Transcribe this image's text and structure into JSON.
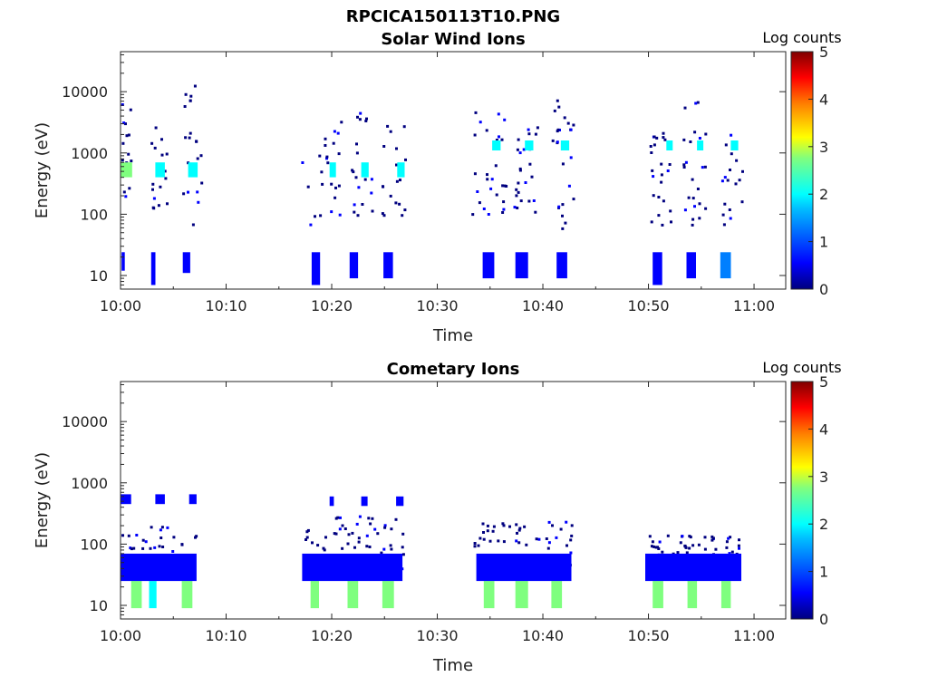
{
  "figure_title": "RPCICA150113T10.PNG",
  "colormap": [
    "#00007f",
    "#0000ff",
    "#007fff",
    "#00ffff",
    "#7fff7f",
    "#ffff00",
    "#ff7f00",
    "#ff0000",
    "#7f0000"
  ],
  "chart_data": [
    {
      "type": "heatmap",
      "title": "Solar Wind Ions",
      "xlabel": "Time",
      "ylabel": "Energy (eV)",
      "yscale": "log",
      "xlim": [
        "10:00",
        "11:03"
      ],
      "ylim": [
        6,
        45000
      ],
      "xticks": [
        "10:00",
        "10:10",
        "10:20",
        "10:30",
        "10:40",
        "10:50",
        "11:00"
      ],
      "yticks": [
        "10",
        "100",
        "1000",
        "10000"
      ],
      "colorbar": {
        "label": "Log counts",
        "range": [
          0,
          5
        ],
        "ticks": [
          "0",
          "1",
          "2",
          "3",
          "4",
          "5"
        ]
      },
      "grid": false,
      "blocks": [
        {
          "t": [
            0.0,
            1.1
          ],
          "e": [
            400,
            700
          ],
          "lc": 2.2
        },
        {
          "t": [
            3.3,
            4.2
          ],
          "e": [
            400,
            700
          ],
          "lc": 2.0
        },
        {
          "t": [
            6.4,
            7.3
          ],
          "e": [
            400,
            700
          ],
          "lc": 2.0
        },
        {
          "t": [
            19.8,
            20.4
          ],
          "e": [
            400,
            700
          ],
          "lc": 1.8
        },
        {
          "t": [
            22.8,
            23.5
          ],
          "e": [
            400,
            700
          ],
          "lc": 1.8
        },
        {
          "t": [
            26.2,
            26.9
          ],
          "e": [
            400,
            700
          ],
          "lc": 1.8
        },
        {
          "t": [
            35.2,
            36.0
          ],
          "e": [
            1100,
            1600
          ],
          "lc": 2.0
        },
        {
          "t": [
            38.3,
            39.1
          ],
          "e": [
            1100,
            1600
          ],
          "lc": 2.0
        },
        {
          "t": [
            41.7,
            42.5
          ],
          "e": [
            1100,
            1600
          ],
          "lc": 2.0
        },
        {
          "t": [
            51.7,
            52.3
          ],
          "e": [
            1100,
            1600
          ],
          "lc": 2.0
        },
        {
          "t": [
            54.6,
            55.2
          ],
          "e": [
            1100,
            1600
          ],
          "lc": 2.0
        },
        {
          "t": [
            57.8,
            58.5
          ],
          "e": [
            1100,
            1600
          ],
          "lc": 2.0
        },
        {
          "t": [
            0.1,
            0.4
          ],
          "e": [
            12,
            24
          ],
          "lc": 0.5
        },
        {
          "t": [
            2.9,
            3.3
          ],
          "e": [
            7,
            24
          ],
          "lc": 0.6
        },
        {
          "t": [
            5.9,
            6.6
          ],
          "e": [
            11,
            24
          ],
          "lc": 0.5
        },
        {
          "t": [
            18.1,
            18.9
          ],
          "e": [
            7,
            24
          ],
          "lc": 0.4
        },
        {
          "t": [
            21.7,
            22.5
          ],
          "e": [
            9,
            24
          ],
          "lc": 0.4
        },
        {
          "t": [
            24.9,
            25.8
          ],
          "e": [
            9,
            24
          ],
          "lc": 0.4
        },
        {
          "t": [
            34.3,
            35.4
          ],
          "e": [
            9,
            24
          ],
          "lc": 0.5
        },
        {
          "t": [
            37.4,
            38.6
          ],
          "e": [
            9,
            24
          ],
          "lc": 0.5
        },
        {
          "t": [
            41.3,
            42.3
          ],
          "e": [
            9,
            24
          ],
          "lc": 0.5
        },
        {
          "t": [
            50.4,
            51.3
          ],
          "e": [
            7,
            24
          ],
          "lc": 0.8
        },
        {
          "t": [
            53.6,
            54.5
          ],
          "e": [
            9,
            24
          ],
          "lc": 0.6
        },
        {
          "t": [
            56.8,
            57.8
          ],
          "e": [
            9,
            24
          ],
          "lc": 1.0
        }
      ],
      "scatter_events": [
        {
          "t": [
            0.0,
            1.0
          ],
          "e": [
            120,
            7000
          ],
          "n": 16
        },
        {
          "t": [
            2.8,
            4.3
          ],
          "e": [
            120,
            3000
          ],
          "n": 16
        },
        {
          "t": [
            5.8,
            7.6
          ],
          "e": [
            60,
            13000
          ],
          "n": 20
        },
        {
          "t": [
            17.1,
            20.8
          ],
          "e": [
            50,
            4500
          ],
          "n": 24
        },
        {
          "t": [
            21.8,
            23.8
          ],
          "e": [
            100,
            5000
          ],
          "n": 20
        },
        {
          "t": [
            24.6,
            26.9
          ],
          "e": [
            100,
            3000
          ],
          "n": 18
        },
        {
          "t": [
            33.2,
            36.4
          ],
          "e": [
            80,
            6000
          ],
          "n": 28
        },
        {
          "t": [
            36.9,
            39.9
          ],
          "e": [
            100,
            3500
          ],
          "n": 24
        },
        {
          "t": [
            40.8,
            42.8
          ],
          "e": [
            60,
            8000
          ],
          "n": 24
        },
        {
          "t": [
            50.1,
            52.1
          ],
          "e": [
            60,
            2500
          ],
          "n": 24
        },
        {
          "t": [
            53.2,
            55.3
          ],
          "e": [
            70,
            8000
          ],
          "n": 24
        },
        {
          "t": [
            56.8,
            58.8
          ],
          "e": [
            70,
            3000
          ],
          "n": 18
        }
      ]
    },
    {
      "type": "heatmap",
      "title": "Cometary Ions",
      "xlabel": "Time",
      "ylabel": "Energy (eV)",
      "yscale": "log",
      "xlim": [
        "10:00",
        "11:03"
      ],
      "ylim": [
        6,
        45000
      ],
      "xticks": [
        "10:00",
        "10:10",
        "10:20",
        "10:30",
        "10:40",
        "10:50",
        "11:00"
      ],
      "yticks": [
        "10",
        "100",
        "1000",
        "10000"
      ],
      "colorbar": {
        "label": "Log counts",
        "range": [
          0,
          5
        ],
        "ticks": [
          "0",
          "1",
          "2",
          "3",
          "4",
          "5"
        ]
      },
      "grid": false,
      "blocks": [
        {
          "t": [
            1.0,
            2.0
          ],
          "e": [
            9,
            25
          ],
          "lc": 2.2
        },
        {
          "t": [
            2.7,
            3.4
          ],
          "e": [
            9,
            25
          ],
          "lc": 2.0
        },
        {
          "t": [
            5.8,
            6.8
          ],
          "e": [
            9,
            25
          ],
          "lc": 2.2
        },
        {
          "t": [
            18.0,
            18.8
          ],
          "e": [
            9,
            25
          ],
          "lc": 2.2
        },
        {
          "t": [
            21.5,
            22.5
          ],
          "e": [
            9,
            25
          ],
          "lc": 2.4
        },
        {
          "t": [
            24.8,
            25.9
          ],
          "e": [
            9,
            25
          ],
          "lc": 2.4
        },
        {
          "t": [
            34.4,
            35.4
          ],
          "e": [
            9,
            25
          ],
          "lc": 2.4
        },
        {
          "t": [
            37.4,
            38.6
          ],
          "e": [
            9,
            25
          ],
          "lc": 2.8
        },
        {
          "t": [
            40.8,
            41.8
          ],
          "e": [
            9,
            25
          ],
          "lc": 2.4
        },
        {
          "t": [
            50.4,
            51.4
          ],
          "e": [
            9,
            25
          ],
          "lc": 2.4
        },
        {
          "t": [
            53.7,
            54.6
          ],
          "e": [
            9,
            25
          ],
          "lc": 2.6
        },
        {
          "t": [
            56.9,
            57.8
          ],
          "e": [
            9,
            25
          ],
          "lc": 2.6
        },
        {
          "t": [
            0.0,
            1.0
          ],
          "e": [
            450,
            650
          ],
          "lc": 0.6
        },
        {
          "t": [
            3.3,
            4.2
          ],
          "e": [
            450,
            650
          ],
          "lc": 0.6
        },
        {
          "t": [
            6.5,
            7.2
          ],
          "e": [
            450,
            650
          ],
          "lc": 0.8
        },
        {
          "t": [
            19.8,
            20.2
          ],
          "e": [
            420,
            600
          ],
          "lc": 0.5
        },
        {
          "t": [
            22.8,
            23.4
          ],
          "e": [
            420,
            600
          ],
          "lc": 0.5
        },
        {
          "t": [
            26.1,
            26.8
          ],
          "e": [
            420,
            600
          ],
          "lc": 0.5
        },
        {
          "t": [
            0.0,
            7.2
          ],
          "e": [
            25,
            70
          ],
          "lc": 0.4
        },
        {
          "t": [
            17.2,
            26.7
          ],
          "e": [
            25,
            70
          ],
          "lc": 0.4
        },
        {
          "t": [
            33.7,
            42.7
          ],
          "e": [
            25,
            70
          ],
          "lc": 0.5
        },
        {
          "t": [
            49.7,
            58.8
          ],
          "e": [
            25,
            70
          ],
          "lc": 0.6
        }
      ],
      "scatter_events": [
        {
          "t": [
            0.0,
            7.2
          ],
          "e": [
            30,
            200
          ],
          "n": 50
        },
        {
          "t": [
            17.2,
            26.7
          ],
          "e": [
            40,
            300
          ],
          "n": 60
        },
        {
          "t": [
            33.4,
            42.7
          ],
          "e": [
            40,
            260
          ],
          "n": 60
        },
        {
          "t": [
            49.7,
            58.8
          ],
          "e": [
            40,
            150
          ],
          "n": 70
        }
      ]
    }
  ]
}
